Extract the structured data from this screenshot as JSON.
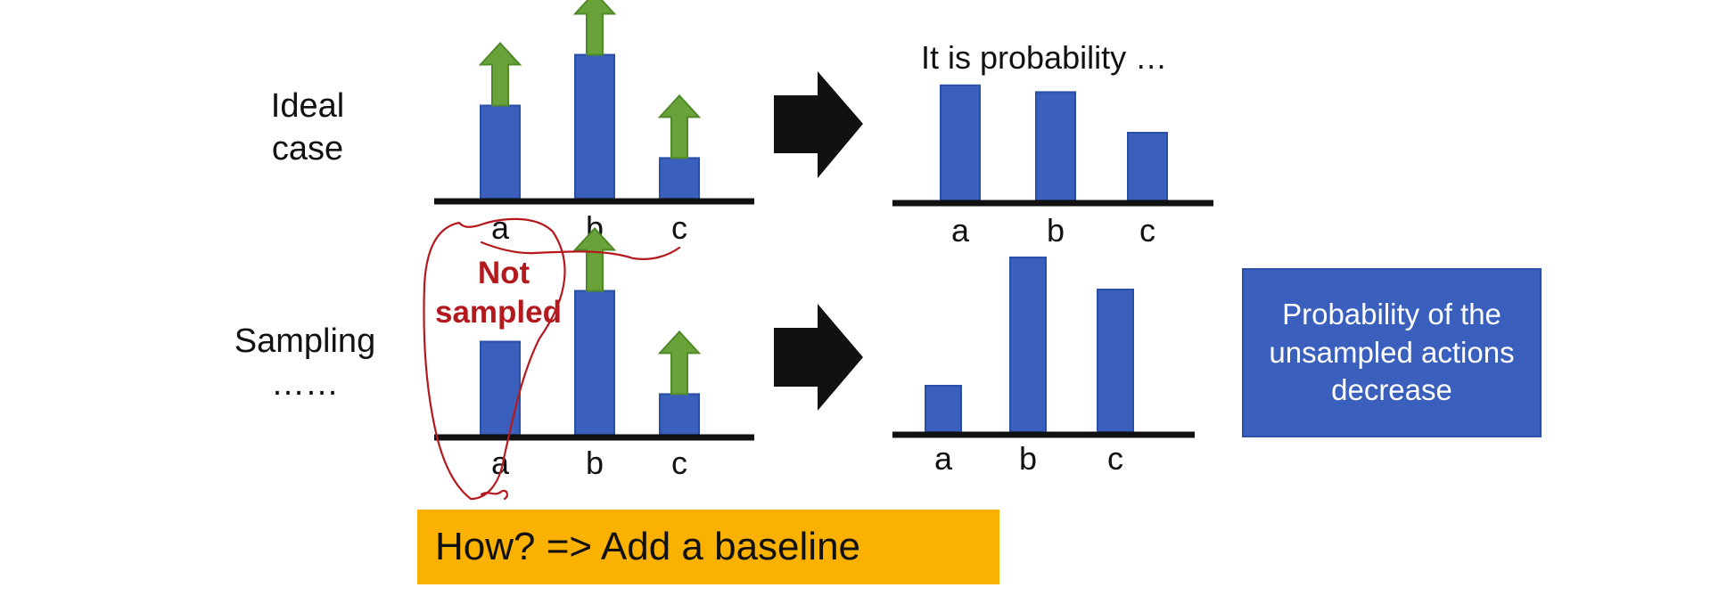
{
  "row_labels": {
    "ideal": "Ideal\ncase",
    "sampling": "Sampling\n……"
  },
  "note": "Probability of the unsampled actions decrease",
  "banner": "How? => Add a baseline",
  "annotation": {
    "text": "Not\nsampled",
    "color": "#b3191d"
  },
  "colors": {
    "bar": "#3a5fbd",
    "arrow": "#6aa23a",
    "note_box": "#3a5fbd",
    "banner": "#fbb100"
  },
  "arrow_icon": "right-arrow-icon",
  "chart_data": [
    {
      "id": "ideal-before",
      "type": "bar",
      "categories": [
        "a",
        "b",
        "c"
      ],
      "values": [
        0.55,
        0.85,
        0.24
      ],
      "increase": [
        true,
        true,
        true
      ],
      "ylim": [
        0,
        1
      ]
    },
    {
      "id": "ideal-after",
      "type": "bar",
      "title": "It is probability …",
      "categories": [
        "a",
        "b",
        "c"
      ],
      "values": [
        0.68,
        0.64,
        0.4
      ],
      "ylim": [
        0,
        1
      ]
    },
    {
      "id": "sampling-before",
      "type": "bar",
      "categories": [
        "a",
        "b",
        "c"
      ],
      "values": [
        0.55,
        0.85,
        0.24
      ],
      "increase": [
        false,
        true,
        true
      ],
      "ylim": [
        0,
        1
      ]
    },
    {
      "id": "sampling-after",
      "type": "bar",
      "categories": [
        "a",
        "b",
        "c"
      ],
      "values": [
        0.26,
        0.98,
        0.8
      ],
      "ylim": [
        0,
        1
      ]
    }
  ]
}
